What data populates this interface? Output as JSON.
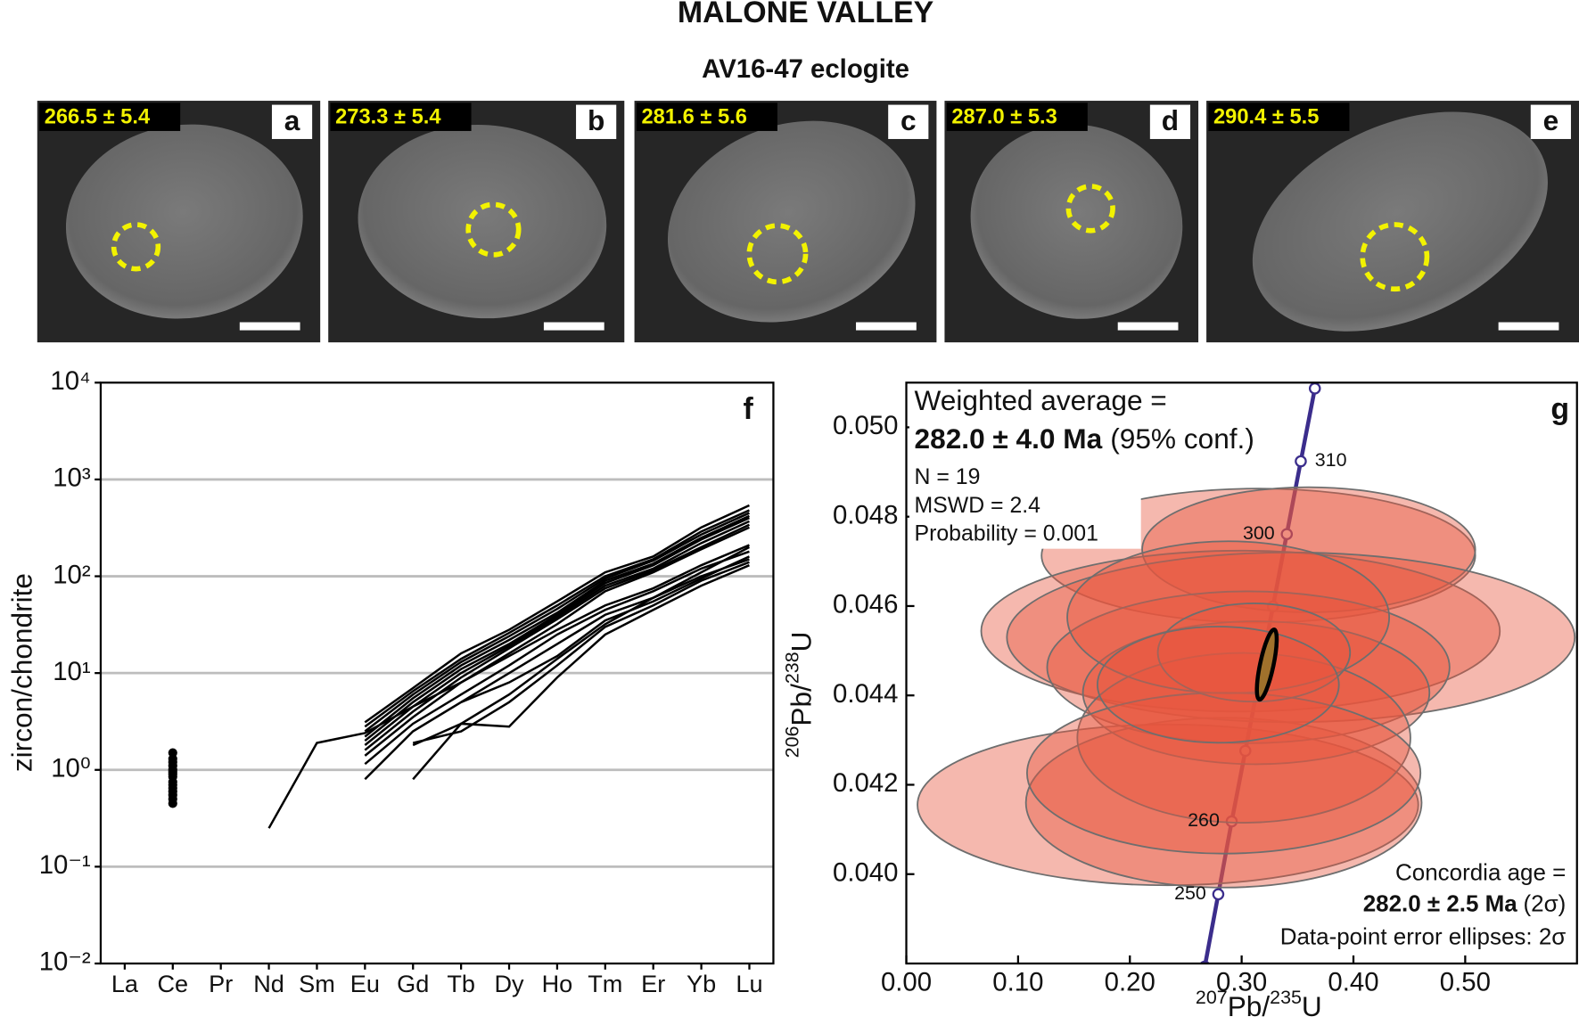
{
  "title": "MALONE VALLEY",
  "subtitle": "AV16-47 eclogite",
  "images": [
    {
      "age": "266.5 ± 5.4",
      "letter": "a"
    },
    {
      "age": "273.3 ± 5.4",
      "letter": "b"
    },
    {
      "age": "281.6 ± 5.6",
      "letter": "c"
    },
    {
      "age": "287.0 ± 5.3",
      "letter": "d"
    },
    {
      "age": "290.4 ± 5.5",
      "letter": "e"
    }
  ],
  "chart_data": [
    {
      "type": "line",
      "letter": "f",
      "ylabel": "zircon/chondrite",
      "categories": [
        "La",
        "Ce",
        "Pr",
        "Nd",
        "Sm",
        "Eu",
        "Gd",
        "Tb",
        "Dy",
        "Ho",
        "Tm",
        "Er",
        "Yb",
        "Lu"
      ],
      "log_y": true,
      "ylim": [
        0.01,
        10000
      ],
      "yticks": [
        {
          "value": 0.01,
          "label": "10⁻²"
        },
        {
          "value": 0.1,
          "label": "10⁻¹"
        },
        {
          "value": 1,
          "label": "10⁰"
        },
        {
          "value": 10,
          "label": "10¹"
        },
        {
          "value": 100,
          "label": "10²"
        },
        {
          "value": 1000,
          "label": "10³"
        },
        {
          "value": 10000,
          "label": "10⁴"
        }
      ],
      "grid": true,
      "color": "#000000",
      "series": [
        {
          "values": [
            null,
            0.9,
            null,
            0.25,
            1.9,
            2.4,
            4.5,
            8,
            15,
            28,
            50,
            75,
            130,
            210
          ]
        },
        {
          "values": [
            null,
            1.5,
            null,
            null,
            null,
            3.1,
            7,
            16,
            28,
            55,
            110,
            160,
            320,
            540
          ]
        },
        {
          "values": [
            null,
            1.3,
            null,
            null,
            null,
            2.8,
            6.5,
            14,
            26,
            50,
            100,
            150,
            290,
            480
          ]
        },
        {
          "values": [
            null,
            1.2,
            null,
            null,
            null,
            2.5,
            6,
            13,
            24,
            46,
            95,
            145,
            270,
            450
          ]
        },
        {
          "values": [
            null,
            1.1,
            null,
            null,
            null,
            2.2,
            5.5,
            12,
            22,
            42,
            90,
            135,
            250,
            420
          ]
        },
        {
          "values": [
            null,
            1.0,
            null,
            null,
            null,
            2.0,
            5,
            11,
            20,
            40,
            85,
            130,
            240,
            400
          ]
        },
        {
          "values": [
            null,
            0.95,
            null,
            null,
            null,
            1.8,
            4.5,
            10,
            19,
            38,
            80,
            120,
            220,
            370
          ]
        },
        {
          "values": [
            null,
            0.85,
            null,
            null,
            null,
            1.6,
            4,
            9,
            18,
            36,
            75,
            115,
            200,
            340
          ]
        },
        {
          "values": [
            null,
            0.75,
            null,
            null,
            null,
            1.4,
            3.5,
            8,
            16,
            32,
            70,
            110,
            190,
            320
          ]
        },
        {
          "values": [
            null,
            0.65,
            null,
            null,
            null,
            1.15,
            3,
            6,
            12,
            25,
            45,
            70,
            120,
            180
          ]
        },
        {
          "values": [
            null,
            0.55,
            null,
            null,
            null,
            0.8,
            2.5,
            5,
            10,
            20,
            40,
            60,
            100,
            150
          ]
        },
        {
          "values": [
            null,
            0.5,
            null,
            null,
            null,
            null,
            1.9,
            2.5,
            5,
            12,
            30,
            50,
            90,
            140
          ]
        },
        {
          "values": [
            null,
            0.45,
            null,
            null,
            null,
            null,
            0.8,
            3,
            2.8,
            9,
            25,
            45,
            80,
            130
          ]
        },
        {
          "values": [
            null,
            0.6,
            null,
            null,
            null,
            null,
            null,
            5,
            8,
            15,
            35,
            55,
            95,
            160
          ]
        },
        {
          "values": [
            null,
            0.7,
            null,
            null,
            null,
            null,
            1.8,
            3,
            6,
            14,
            32,
            60,
            110,
            200
          ]
        }
      ]
    },
    {
      "type": "ellipse",
      "letter": "g",
      "xlabel_parts": [
        {
          "text": "207",
          "sup": true
        },
        {
          "text": "Pb/"
        },
        {
          "text": "235",
          "sup": true
        },
        {
          "text": "U"
        }
      ],
      "ylabel_parts": [
        {
          "text": "206",
          "sup": true
        },
        {
          "text": "Pb/"
        },
        {
          "text": "238",
          "sup": true
        },
        {
          "text": "U"
        }
      ],
      "xlim": [
        0,
        0.6
      ],
      "ylim": [
        0.038,
        0.051
      ],
      "xticks": [
        {
          "value": 0,
          "label": "0.00"
        },
        {
          "value": 0.1,
          "label": "0.10"
        },
        {
          "value": 0.2,
          "label": "0.20"
        },
        {
          "value": 0.3,
          "label": "0.30"
        },
        {
          "value": 0.4,
          "label": "0.40"
        },
        {
          "value": 0.5,
          "label": "0.50"
        }
      ],
      "yticks": [
        {
          "value": 0.04,
          "label": "0.040"
        },
        {
          "value": 0.042,
          "label": "0.042"
        },
        {
          "value": 0.044,
          "label": "0.044"
        },
        {
          "value": 0.046,
          "label": "0.046"
        },
        {
          "value": 0.048,
          "label": "0.048"
        },
        {
          "value": 0.05,
          "label": "0.050"
        }
      ],
      "concordia": {
        "color": "#3b2d8c",
        "x": [
          0.267,
          0.2791,
          0.2911,
          0.3033,
          0.3156,
          0.328,
          0.3404,
          0.3529,
          0.3655,
          0.3782
        ],
        "y": [
          0.03793,
          0.03955,
          0.04118,
          0.04276,
          0.04437,
          0.04599,
          0.04761,
          0.04924,
          0.05087,
          0.0525
        ],
        "labels": [
          null,
          "250",
          "260",
          null,
          null,
          null,
          "300",
          "310",
          null,
          null
        ]
      },
      "ellipses": {
        "color": "#e8553f",
        "x": [
          0.234,
          0.284,
          0.315,
          0.36,
          0.299,
          0.344,
          0.306,
          0.313,
          0.302,
          0.284,
          0.288,
          0.311,
          0.279
        ],
        "y": [
          0.04155,
          0.0416,
          0.04713,
          0.04726,
          0.04544,
          0.0453,
          0.04463,
          0.04406,
          0.04305,
          0.04226,
          0.04575,
          0.04496,
          0.04424
        ],
        "x_err": [
          0.224,
          0.177,
          0.194,
          0.149,
          0.232,
          0.254,
          0.18,
          0.155,
          0.149,
          0.176,
          0.144,
          0.086,
          0.108
        ],
        "y_err": [
          0.0018,
          0.0019,
          0.0015,
          0.0014,
          0.0018,
          0.0019,
          0.0017,
          0.0016,
          0.0019,
          0.0018,
          0.0017,
          0.0011,
          0.0013
        ]
      },
      "concordia_age_ellipse": {
        "color": "#a0712c",
        "x": 0.3225,
        "y": 0.04469,
        "x_err": 0.006,
        "y_err": 0.0008
      },
      "annotations": {
        "weighted_title": "Weighted average =",
        "weighted_age": "282.0 ± 4.0 Ma",
        "weighted_conf": "(95% conf.)",
        "n": "N = 19",
        "mswd": "MSWD = 2.4",
        "probability": "Probability = 0.001",
        "concordia_title": "Concordia age =",
        "concordia_age": "282.0 ± 2.5 Ma",
        "concordia_sigma": "(2σ)",
        "ellipse_note": "Data-point error ellipses: 2σ"
      }
    }
  ]
}
